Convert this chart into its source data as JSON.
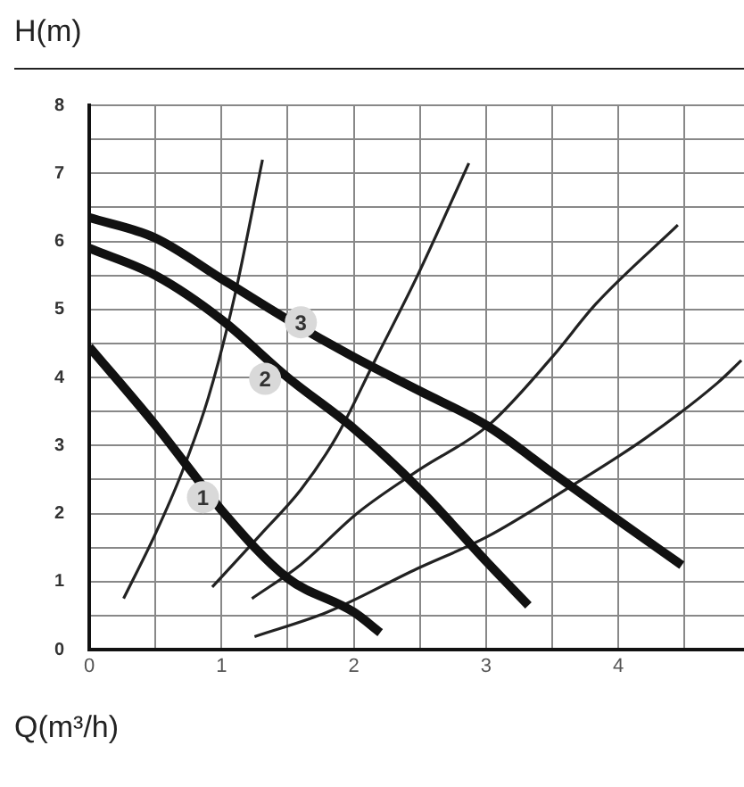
{
  "chart_data": {
    "type": "line",
    "xlabel": "Q(m³/h)",
    "ylabel": "H(m)",
    "xlim": [
      0,
      4.95
    ],
    "ylim": [
      0,
      8
    ],
    "xticks": [
      0,
      {
        "value": 0.5,
        "label": null
      },
      1,
      {
        "value": 1.5,
        "label": null
      },
      2,
      {
        "value": 2.5,
        "label": null
      },
      3,
      {
        "value": 3.5,
        "label": null
      },
      4,
      {
        "value": 4.5,
        "label": null
      }
    ],
    "yticks": [
      0,
      {
        "value": 0.5,
        "label": null
      },
      1,
      {
        "value": 1.5,
        "label": null
      },
      2,
      {
        "value": 2.5,
        "label": null
      },
      3,
      {
        "value": 3.5,
        "label": null
      },
      4,
      {
        "value": 4.5,
        "label": null
      },
      5,
      {
        "value": 5.5,
        "label": null
      },
      6,
      {
        "value": 6.5,
        "label": null
      },
      7,
      {
        "value": 7.5,
        "label": null
      },
      8
    ],
    "grid": true,
    "legend": false,
    "marker": "none",
    "line_style": "solid",
    "series": [
      {
        "color": "#111111",
        "x": [
          0,
          0.5,
          1,
          1.5,
          2,
          2.5,
          3,
          3.5,
          4,
          4.48
        ],
        "values": [
          6.35,
          6.05,
          5.45,
          4.85,
          4.3,
          3.8,
          3.3,
          2.6,
          1.9,
          1.24
        ]
      },
      {
        "color": "#111111",
        "x": [
          0,
          0.5,
          1,
          1.5,
          2,
          2.5,
          3,
          3.32
        ],
        "values": [
          5.9,
          5.5,
          4.85,
          4.0,
          3.25,
          2.35,
          1.3,
          0.65
        ]
      },
      {
        "color": "#111111",
        "x": [
          0,
          0.5,
          0.8,
          1,
          1.5,
          2,
          2.2
        ],
        "values": [
          4.45,
          3.3,
          2.55,
          2.05,
          1.05,
          0.55,
          0.25
        ]
      },
      {
        "color": "#222222",
        "x": [
          0.26,
          0.5,
          0.7,
          0.9,
          1.1,
          1.31
        ],
        "values": [
          0.75,
          1.7,
          2.6,
          3.7,
          5.2,
          7.2
        ]
      },
      {
        "color": "#222222",
        "x": [
          0.93,
          1.3,
          1.6,
          1.87,
          2.16,
          2.48,
          2.87
        ],
        "values": [
          0.92,
          1.7,
          2.35,
          3.13,
          4.25,
          5.49,
          7.15
        ]
      },
      {
        "color": "#222222",
        "x": [
          1.23,
          1.6,
          2.03,
          2.5,
          3.02,
          3.5,
          3.83,
          4.45
        ],
        "values": [
          0.75,
          1.25,
          2.01,
          2.65,
          3.3,
          4.3,
          5.08,
          6.24
        ]
      },
      {
        "color": "#222222",
        "x": [
          1.25,
          1.8,
          2.48,
          3.0,
          3.6,
          4.2,
          4.75,
          4.93
        ],
        "values": [
          0.19,
          0.55,
          1.19,
          1.65,
          2.35,
          3.1,
          3.92,
          4.25
        ]
      }
    ],
    "annotations": [
      {
        "text": "3",
        "x": 1.6,
        "y": 4.81
      },
      {
        "text": "2",
        "x": 1.33,
        "y": 3.98
      },
      {
        "text": "1",
        "x": 0.86,
        "y": 2.24
      }
    ]
  }
}
